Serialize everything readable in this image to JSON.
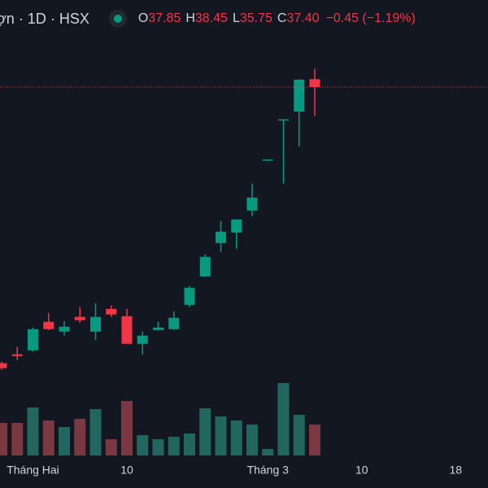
{
  "header": {
    "symbol": "ợn · 1D · HSX",
    "items": [
      {
        "key": "O",
        "value": "37.85"
      },
      {
        "key": "H",
        "value": "38.45"
      },
      {
        "key": "L",
        "value": "35.75"
      },
      {
        "key": "C",
        "value": "37.40"
      }
    ],
    "change": "−0.45 (−1.19%)"
  },
  "chart_data": {
    "type": "candlestick",
    "categories": [
      null,
      null,
      "Tháng Hai",
      null,
      null,
      null,
      null,
      null,
      "10",
      null,
      null,
      null,
      null,
      null,
      null,
      null,
      null,
      "Tháng 3",
      null,
      null,
      null,
      null,
      null,
      "10",
      null,
      null,
      null,
      null,
      null,
      "18",
      null
    ],
    "open": [
      21.59,
      22.1,
      22.33,
      23.96,
      23.4,
      24.24,
      23.4,
      24.7,
      24.28,
      22.7,
      23.49,
      23.54,
      24.93,
      26.56,
      28.47,
      29.07,
      30.33,
      33.2,
      35.5,
      36.0,
      37.85,
      null,
      null,
      null,
      null,
      null,
      null,
      null,
      null,
      null,
      null
    ],
    "high": [
      21.68,
      22.52,
      23.63,
      24.47,
      24.0,
      24.8,
      25.03,
      24.89,
      24.7,
      23.4,
      23.96,
      24.56,
      26.0,
      27.82,
      29.73,
      29.82,
      31.87,
      33.25,
      35.55,
      37.85,
      38.45,
      null,
      null,
      null,
      null,
      null,
      null,
      null,
      null,
      null,
      null
    ],
    "low": [
      21.21,
      21.77,
      22.24,
      23.49,
      23.17,
      23.91,
      22.93,
      24.24,
      22.7,
      22.1,
      23.45,
      23.49,
      24.8,
      26.52,
      27.96,
      28.14,
      30.0,
      33.2,
      31.87,
      34.0,
      35.75,
      null,
      null,
      null,
      null,
      null,
      null,
      null,
      null,
      null,
      null
    ],
    "close": [
      21.31,
      22.0,
      23.54,
      23.54,
      23.68,
      24.05,
      24.24,
      24.38,
      22.7,
      23.17,
      23.63,
      24.19,
      25.91,
      27.68,
      29.12,
      29.82,
      31.07,
      33.25,
      35.55,
      37.82,
      37.4,
      null,
      null,
      null,
      null,
      null,
      null,
      null,
      null,
      null,
      null
    ],
    "volume": [
      40,
      40,
      59,
      43,
      35,
      45,
      57,
      20,
      67,
      25,
      20,
      23,
      27,
      58,
      48,
      43,
      38,
      8,
      89,
      50,
      38,
      null,
      null,
      null,
      null,
      null,
      null,
      null,
      null,
      null,
      null
    ],
    "up_color": "#089981",
    "down_color": "#f23645",
    "volume_up_color": "#22675d",
    "volume_down_color": "#7a3841",
    "ylim": [
      20.5,
      41.45
    ],
    "volume_ylim": [
      0,
      100
    ]
  }
}
